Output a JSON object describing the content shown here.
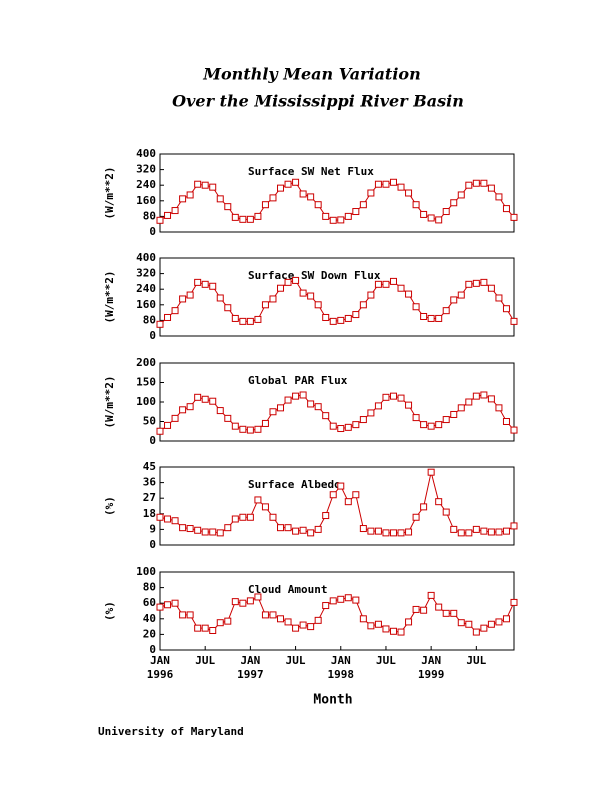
{
  "header": {
    "title": [
      "Monthly Mean Variation",
      "Over the Mississippi River Basin"
    ],
    "footer": "University of Maryland"
  },
  "chart_data": [
    {
      "type": "line",
      "title": "Surface SW Net Flux",
      "ylabel": "(W/m**2)",
      "color": "#cc0000",
      "ylim": [
        0,
        400
      ],
      "yticks": [
        0,
        80,
        160,
        240,
        320,
        400
      ],
      "values": [
        60,
        85,
        110,
        170,
        190,
        245,
        240,
        230,
        170,
        130,
        75,
        65,
        65,
        80,
        140,
        175,
        225,
        245,
        255,
        195,
        180,
        140,
        80,
        60,
        62,
        80,
        105,
        140,
        200,
        245,
        245,
        255,
        230,
        200,
        140,
        90,
        72,
        62,
        105,
        150,
        190,
        240,
        250,
        250,
        225,
        180,
        120,
        75
      ]
    },
    {
      "type": "line",
      "title": "Surface SW Down Flux",
      "ylabel": "(W/m**2)",
      "color": "#cc0000",
      "ylim": [
        0,
        400
      ],
      "yticks": [
        0,
        80,
        160,
        240,
        320,
        400
      ],
      "values": [
        60,
        95,
        130,
        190,
        210,
        275,
        265,
        255,
        195,
        145,
        90,
        75,
        75,
        85,
        160,
        190,
        245,
        275,
        285,
        220,
        205,
        160,
        95,
        75,
        80,
        90,
        110,
        160,
        210,
        265,
        265,
        280,
        245,
        215,
        150,
        100,
        90,
        90,
        130,
        185,
        210,
        265,
        270,
        275,
        245,
        195,
        140,
        75
      ]
    },
    {
      "type": "line",
      "title": "Global PAR Flux",
      "ylabel": "(W/m**2)",
      "color": "#cc0000",
      "ylim": [
        0,
        200
      ],
      "yticks": [
        0,
        50,
        100,
        150,
        200
      ],
      "values": [
        25,
        40,
        58,
        80,
        88,
        112,
        107,
        102,
        78,
        58,
        38,
        30,
        28,
        30,
        45,
        75,
        85,
        105,
        115,
        118,
        95,
        88,
        65,
        38,
        32,
        35,
        42,
        55,
        72,
        90,
        112,
        115,
        110,
        92,
        60,
        42,
        38,
        42,
        55,
        68,
        85,
        100,
        115,
        118,
        108,
        85,
        50,
        28
      ]
    },
    {
      "type": "line",
      "title": "Surface Albedo",
      "ylabel": "(%)",
      "color": "#cc0000",
      "ylim": [
        0,
        45
      ],
      "yticks": [
        0,
        9,
        18,
        27,
        36,
        45
      ],
      "values": [
        16,
        15,
        14,
        10,
        9.5,
        8.5,
        7.5,
        7.5,
        7,
        10,
        15,
        16,
        16,
        26,
        22,
        16,
        10,
        10,
        8,
        8.5,
        7,
        9,
        17,
        29,
        34,
        25,
        29,
        9.5,
        8,
        8,
        7,
        7,
        7,
        7.5,
        16,
        22,
        42,
        25,
        19,
        9,
        7,
        7,
        9,
        8,
        7.5,
        7.5,
        8,
        11
      ]
    },
    {
      "type": "line",
      "title": "Cloud Amount",
      "ylabel": "(%)",
      "color": "#cc0000",
      "ylim": [
        0,
        100
      ],
      "yticks": [
        0,
        20,
        40,
        60,
        80,
        100
      ],
      "values": [
        55,
        58,
        60,
        45,
        45,
        28,
        28,
        25,
        35,
        37,
        62,
        60,
        63,
        68,
        45,
        45,
        40,
        36,
        28,
        32,
        30,
        38,
        57,
        63,
        65,
        67,
        64,
        40,
        31,
        33,
        27,
        24,
        23,
        36,
        52,
        51,
        70,
        55,
        47,
        47,
        35,
        33,
        23,
        28,
        33,
        36,
        40,
        61
      ],
      "categories": [
        "JAN",
        null,
        null,
        null,
        null,
        null,
        "JUL",
        null,
        null,
        null,
        null,
        null,
        "JAN",
        null,
        null,
        null,
        null,
        null,
        "JUL",
        null,
        null,
        null,
        null,
        null,
        "JAN",
        null,
        null,
        null,
        null,
        null,
        "JUL",
        null,
        null,
        null,
        null,
        null,
        "JAN",
        null,
        null,
        null,
        null,
        null,
        "JUL",
        null,
        null,
        null,
        null,
        null
      ],
      "years": [
        "1996",
        null,
        null,
        null,
        null,
        null,
        null,
        null,
        null,
        null,
        null,
        null,
        "1997",
        null,
        null,
        null,
        null,
        null,
        null,
        null,
        null,
        null,
        null,
        null,
        "1998",
        null,
        null,
        null,
        null,
        null,
        null,
        null,
        null,
        null,
        null,
        null,
        "1999",
        null,
        null,
        null,
        null,
        null,
        null,
        null,
        null,
        null,
        null,
        null
      ],
      "xlabel": "Month"
    }
  ]
}
